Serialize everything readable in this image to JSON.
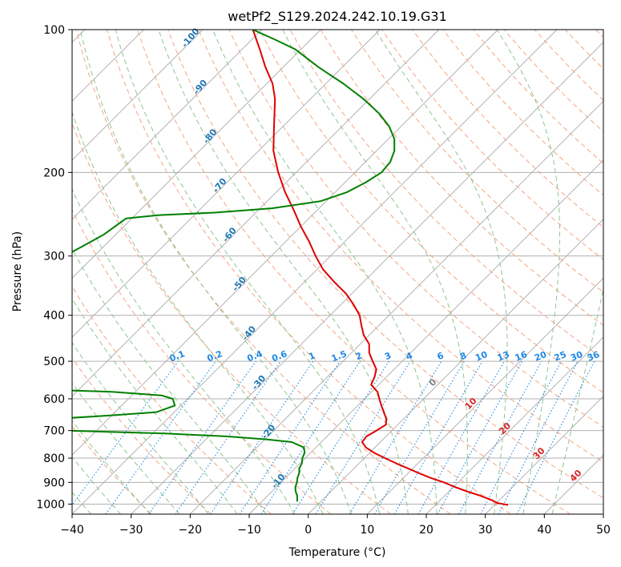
{
  "chart_data": {
    "type": "line",
    "subtype": "skew-T log-P diagram",
    "title": "wetPf2_S129.2024.242.10.19.G31",
    "xlabel": "Temperature (°C)",
    "ylabel": "Pressure (hPa)",
    "xlim": [
      -40,
      50
    ],
    "ylim": [
      1050,
      100
    ],
    "y_scale": "log",
    "x_ticks": [
      "−40",
      "−30",
      "−20",
      "−10",
      "0",
      "10",
      "20",
      "30",
      "40",
      "50"
    ],
    "y_ticks": [
      "100",
      "200",
      "300",
      "400",
      "500",
      "600",
      "700",
      "800",
      "900",
      "1000"
    ],
    "grid": true,
    "series": [
      {
        "name": "temperature",
        "color": "#e00000",
        "points": [
          [
            1004,
            32.3
          ],
          [
            995,
            30.2
          ],
          [
            980,
            28.6
          ],
          [
            960,
            26.0
          ],
          [
            940,
            23.0
          ],
          [
            920,
            20.2
          ],
          [
            900,
            17.6
          ],
          [
            880,
            14.5
          ],
          [
            860,
            11.7
          ],
          [
            840,
            9.0
          ],
          [
            820,
            6.2
          ],
          [
            800,
            3.5
          ],
          [
            780,
            0.8
          ],
          [
            760,
            -1.5
          ],
          [
            740,
            -3.1
          ],
          [
            720,
            -3.3
          ],
          [
            700,
            -2.6
          ],
          [
            680,
            -2.0
          ],
          [
            660,
            -3.0
          ],
          [
            640,
            -4.5
          ],
          [
            620,
            -6.0
          ],
          [
            600,
            -7.5
          ],
          [
            580,
            -9.0
          ],
          [
            560,
            -11.3
          ],
          [
            540,
            -12.0
          ],
          [
            520,
            -13.0
          ],
          [
            500,
            -15.0
          ],
          [
            480,
            -17.0
          ],
          [
            460,
            -18.5
          ],
          [
            440,
            -21.0
          ],
          [
            420,
            -23.0
          ],
          [
            400,
            -25.0
          ],
          [
            380,
            -27.8
          ],
          [
            360,
            -31.0
          ],
          [
            340,
            -35.0
          ],
          [
            320,
            -39.0
          ],
          [
            300,
            -42.5
          ],
          [
            280,
            -46.0
          ],
          [
            260,
            -50.0
          ],
          [
            240,
            -54.0
          ],
          [
            220,
            -58.5
          ],
          [
            200,
            -63.0
          ],
          [
            180,
            -67.5
          ],
          [
            160,
            -71.5
          ],
          [
            140,
            -76.0
          ],
          [
            130,
            -79.0
          ],
          [
            120,
            -83.0
          ],
          [
            110,
            -87.0
          ],
          [
            100,
            -91.5
          ]
        ]
      },
      {
        "name": "dewpoint",
        "color": "#008000",
        "points": [
          [
            988,
            -4.0
          ],
          [
            960,
            -5.0
          ],
          [
            940,
            -6.0
          ],
          [
            920,
            -6.8
          ],
          [
            900,
            -7.3
          ],
          [
            880,
            -8.0
          ],
          [
            860,
            -8.5
          ],
          [
            840,
            -9.3
          ],
          [
            820,
            -9.7
          ],
          [
            800,
            -10.5
          ],
          [
            780,
            -11.0
          ],
          [
            760,
            -12.0
          ],
          [
            740,
            -15.0
          ],
          [
            730,
            -20.0
          ],
          [
            720,
            -27.0
          ],
          [
            710,
            -38.0
          ],
          [
            700,
            -55.0
          ],
          [
            690,
            -65.0
          ],
          [
            680,
            -76.0
          ],
          [
            670,
            -68.0
          ],
          [
            660,
            -58.0
          ],
          [
            650,
            -50.0
          ],
          [
            640,
            -43.0
          ],
          [
            620,
            -41.0
          ],
          [
            600,
            -42.5
          ],
          [
            590,
            -45.0
          ],
          [
            580,
            -54.0
          ],
          [
            575,
            -63.0
          ],
          [
            570,
            -75.0
          ],
          [
            560,
            -78.0
          ],
          [
            540,
            -80.0
          ],
          [
            520,
            -80.5
          ],
          [
            500,
            -80.5
          ],
          [
            480,
            -80.5
          ],
          [
            460,
            -80.0
          ],
          [
            440,
            -80.0
          ],
          [
            420,
            -80.5
          ],
          [
            400,
            -81.0
          ],
          [
            380,
            -82.0
          ],
          [
            360,
            -83.0
          ],
          [
            340,
            -84.0
          ],
          [
            320,
            -84.5
          ],
          [
            300,
            -85.0
          ],
          [
            290,
            -84.0
          ],
          [
            280,
            -83.0
          ],
          [
            270,
            -82.0
          ],
          [
            260,
            -81.5
          ],
          [
            250,
            -81.0
          ],
          [
            246,
            -76.0
          ],
          [
            243,
            -67.0
          ],
          [
            238,
            -58.0
          ],
          [
            230,
            -51.0
          ],
          [
            220,
            -48.0
          ],
          [
            210,
            -46.5
          ],
          [
            200,
            -45.5
          ],
          [
            190,
            -45.8
          ],
          [
            180,
            -47.0
          ],
          [
            170,
            -49.0
          ],
          [
            160,
            -52.0
          ],
          [
            150,
            -56.0
          ],
          [
            140,
            -61.0
          ],
          [
            130,
            -67.0
          ],
          [
            120,
            -74.0
          ],
          [
            110,
            -81.0
          ],
          [
            105,
            -86.0
          ],
          [
            100,
            -91.5
          ]
        ]
      }
    ],
    "isotherm_step": 10,
    "dry_adiabat_labels": [
      "-100",
      "-90",
      "-80",
      "-70",
      "-60",
      "-50",
      "-40",
      "-30",
      "-20",
      "-10"
    ],
    "moist_adiabat_labels": [
      "0",
      "10",
      "20",
      "30",
      "40"
    ],
    "mixing_ratio_labels": [
      "0.1",
      "0.2",
      "0.4",
      "0.6",
      "1",
      "1.5",
      "2",
      "3",
      "4",
      "6",
      "8",
      "10",
      "13",
      "16",
      "20",
      "25",
      "30",
      "36"
    ],
    "colors": {
      "isobar": "#b0b0b0",
      "isotherm": "#aaaaaa",
      "dry_adiabat": "#f4a582",
      "moist_adiabat": "#8dc68d",
      "mixing_ratio": "#1e88e5"
    }
  }
}
